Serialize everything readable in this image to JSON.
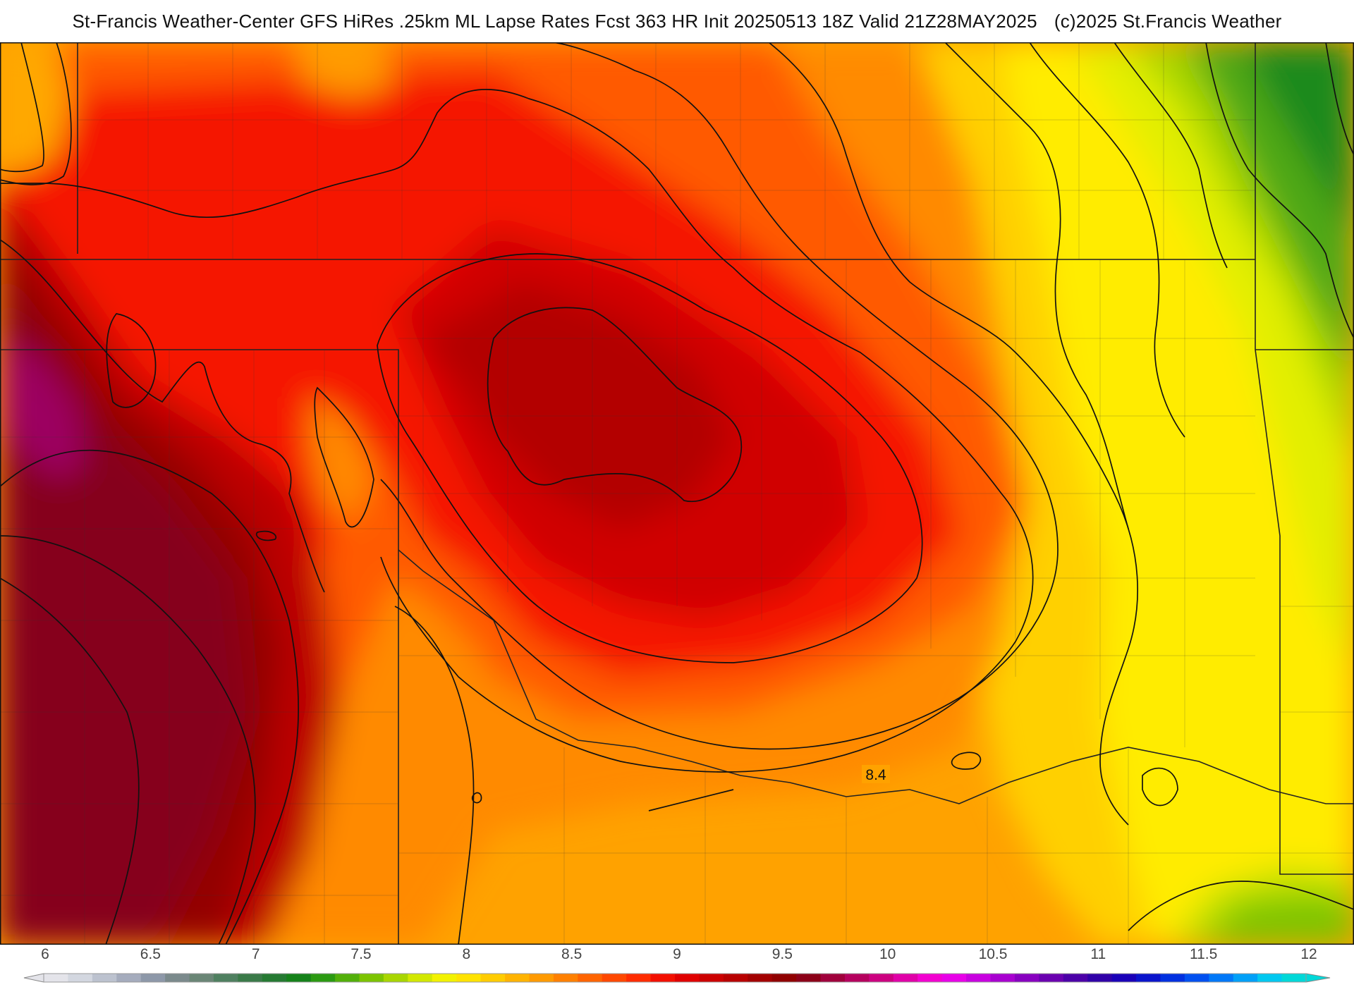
{
  "title": {
    "main": "St-Francis Weather-Center GFS HiRes .25km ML Lapse Rates  Fcst 363 HR Init 20250513 18Z  Valid 21Z28MAY2025",
    "copyright": "(c)2025 St.Francis Weather"
  },
  "map": {
    "contour_label": "8.4"
  },
  "colorbar": {
    "ticks": [
      "6",
      "6.5",
      "7",
      "7.5",
      "8",
      "8.5",
      "9",
      "9.5",
      "10",
      "10.5",
      "11",
      "11.5",
      "12"
    ],
    "colors": [
      "#e4e4ea",
      "#d3d7e0",
      "#bcc2cf",
      "#a5acbd",
      "#8d98a9",
      "#7b8a8c",
      "#6a8676",
      "#4f8060",
      "#3a7a48",
      "#257a32",
      "#15821a",
      "#2b9a12",
      "#52b00a",
      "#7cc400",
      "#a8d600",
      "#d2e800",
      "#f2f200",
      "#ffe300",
      "#ffcc00",
      "#ffb300",
      "#ff9a00",
      "#ff8000",
      "#ff6400",
      "#ff4800",
      "#ff2c00",
      "#f31000",
      "#e00000",
      "#cc0000",
      "#b80000",
      "#a30000",
      "#900000",
      "#8c0018",
      "#a0003c",
      "#b5005e",
      "#cc0080",
      "#e000a8",
      "#f200d0",
      "#e800e8",
      "#c800e0",
      "#a800d0",
      "#8800c0",
      "#6a00b0",
      "#4c00a8",
      "#3000a8",
      "#1a00b8",
      "#0a14cc",
      "#0030e0",
      "#0050f0",
      "#0078f8",
      "#00a0f8",
      "#00c8f0",
      "#00d8d8"
    ]
  }
}
